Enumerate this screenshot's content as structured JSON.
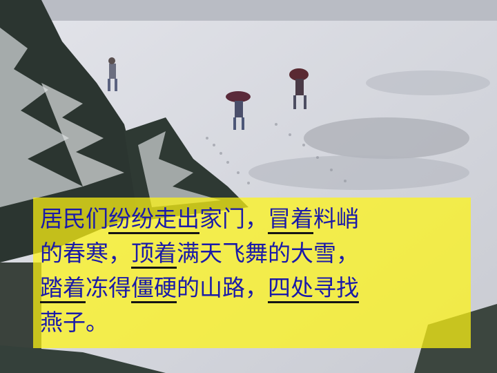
{
  "slide": {
    "background": "snowy park photo with people walking under umbrellas",
    "passage": {
      "line1": {
        "a": "居民们",
        "b": "纷纷走出",
        "c": "家门，",
        "d": "冒着",
        "e": "料峭"
      },
      "line2": {
        "a": "的春寒，",
        "b": "顶着",
        "c": "满天飞舞的大雪，"
      },
      "line3": {
        "a": "踏着",
        "b": "冻得",
        "c": "僵硬",
        "d": "的山路，",
        "e": "四处寻找"
      },
      "line4": {
        "a": "燕子。"
      }
    },
    "colors": {
      "text": "#1a1aa8",
      "box": "#fff514",
      "underline": "#141414"
    }
  }
}
